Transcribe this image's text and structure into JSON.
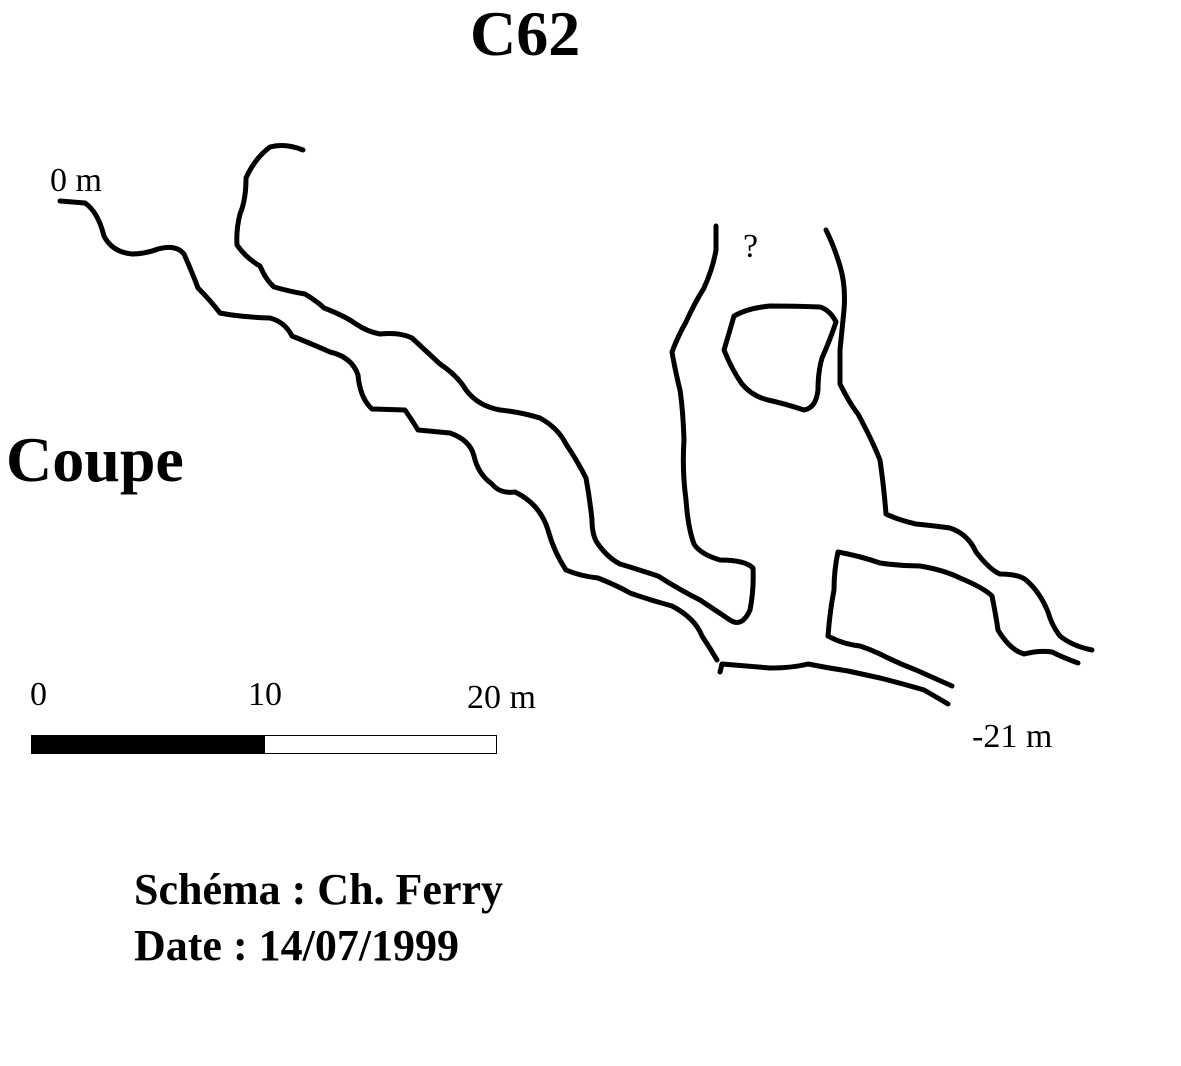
{
  "title": "C62",
  "section_label": "Coupe",
  "depth": {
    "top": "0 m",
    "bottom": "-21 m"
  },
  "unknown_marker": "?",
  "scale": {
    "tick_0": "0",
    "tick_10": "10",
    "tick_20": "20 m"
  },
  "credits": {
    "author": "Schéma : Ch. Ferry",
    "date": "Date : 14/07/1999"
  },
  "colors": {
    "ink": "#000000",
    "paper": "#ffffff"
  }
}
